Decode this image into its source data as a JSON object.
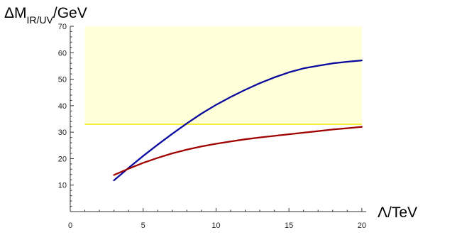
{
  "chart_data": {
    "type": "line",
    "title": "",
    "xlabel": "Λ/TeV",
    "ylabel": {
      "prefix": "ΔM",
      "subscript": "IR/UV",
      "suffix": "/GeV"
    },
    "xlim": [
      0,
      20.3
    ],
    "ylim": [
      0,
      70
    ],
    "x_ticks": [
      0,
      5,
      10,
      15,
      20
    ],
    "y_ticks": [
      10,
      20,
      30,
      40,
      50,
      60,
      70
    ],
    "band": {
      "x": [
        1,
        20
      ],
      "y": [
        33,
        70
      ],
      "fill": "#ffffd9",
      "edge_color": "#f5ee3c"
    },
    "grid": false,
    "legend": "none",
    "series": [
      {
        "color": "#0a0a9e",
        "x": [
          3,
          4,
          5,
          6,
          7,
          8,
          9,
          10,
          11,
          12,
          13,
          14,
          15,
          16,
          17,
          18,
          19,
          20
        ],
        "y": [
          11.8,
          16.5,
          21.0,
          25.3,
          29.4,
          33.3,
          37.0,
          40.3,
          43.3,
          46.0,
          48.5,
          50.7,
          52.6,
          54.1,
          55.1,
          56.0,
          56.6,
          57.1
        ]
      },
      {
        "color": "#a00000",
        "x": [
          3,
          4,
          5,
          6,
          7,
          8,
          9,
          10,
          11,
          12,
          13,
          14,
          15,
          16,
          17,
          18,
          19,
          20
        ],
        "y": [
          13.8,
          16.2,
          18.4,
          20.3,
          22.0,
          23.4,
          24.6,
          25.6,
          26.5,
          27.3,
          28.0,
          28.6,
          29.2,
          29.8,
          30.4,
          31.0,
          31.5,
          32.0
        ]
      }
    ]
  }
}
